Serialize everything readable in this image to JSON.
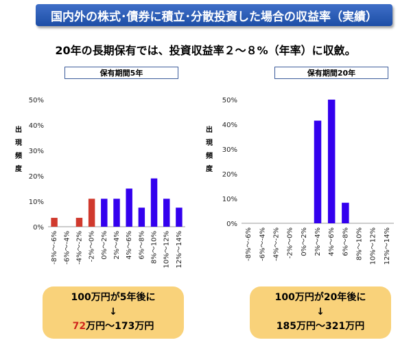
{
  "header": {
    "banner": "国内外の株式･債券に積立･分散投資した場合の収益率（実績）",
    "subtitle": "20年の長期保有では、投資収益率２～８%（年率）に収斂。"
  },
  "colors": {
    "negative": "#d0392d",
    "positive": "#3300ee",
    "banner": "#2d5bb5",
    "callout": "#f9d27a"
  },
  "ylabel_chars": [
    "出",
    "現",
    "頻",
    "度"
  ],
  "chart_data": [
    {
      "type": "bar",
      "title": "保有期間5年",
      "ylabel": "出現頻度",
      "ylim": [
        0,
        50
      ],
      "yticks": [
        "0%",
        "10%",
        "20%",
        "30%",
        "40%",
        "50%"
      ],
      "categories": [
        "-8%～-6%",
        "-6%～-4%",
        "-4%～-2%",
        "-2%～0%",
        "0%～2%",
        "2%～4%",
        "4%～6%",
        "6%～8%",
        "8%～10%",
        "10%～12%",
        "12%～14%"
      ],
      "values": [
        3.5,
        0,
        3.5,
        11,
        11,
        11,
        15,
        7.5,
        19,
        11,
        7.5
      ],
      "negative_count": 4
    },
    {
      "type": "bar",
      "title": "保有期間20年",
      "ylabel": "出現頻度",
      "ylim": [
        0,
        50
      ],
      "yticks": [
        "0%",
        "10%",
        "20%",
        "30%",
        "40%",
        "50%"
      ],
      "categories": [
        "-8%～-6%",
        "-6%～-4%",
        "-4%～-2%",
        "-2%～0%",
        "0%～2%",
        "2%～4%",
        "4%～6%",
        "6%～8%",
        "8%～10%",
        "10%～12%",
        "12%～14%"
      ],
      "values": [
        0,
        0,
        0,
        0,
        0,
        41.5,
        50,
        8.3,
        0,
        0,
        0
      ],
      "negative_count": 4
    }
  ],
  "callouts": {
    "left": {
      "line1": "100万円が5年後に",
      "arrow": "↓",
      "low": "72",
      "rest": "万円～173万円"
    },
    "right": {
      "line1": "100万円が20年後に",
      "arrow": "↓",
      "line3": "185万円～321万円"
    }
  }
}
